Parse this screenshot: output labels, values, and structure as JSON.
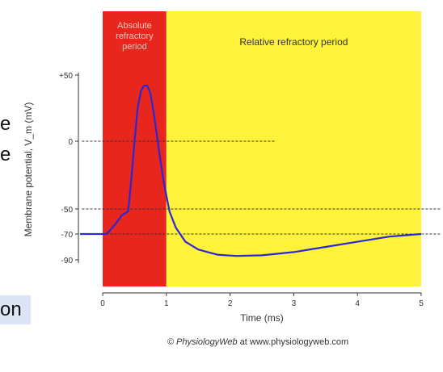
{
  "chart_data": {
    "type": "line",
    "xlabel": "Time (ms)",
    "ylabel": "Membrane potential, V_m (mV)",
    "xlim": [
      0,
      5
    ],
    "ylim": [
      -100,
      60
    ],
    "x_ticks": [
      "0",
      "1",
      "2",
      "3",
      "4",
      "5"
    ],
    "y_ticks": [
      {
        "value": 50,
        "label": "+50"
      },
      {
        "value": 0,
        "label": "0"
      },
      {
        "value": -50,
        "label": "-50"
      },
      {
        "value": -70,
        "label": "-70"
      },
      {
        "value": -90,
        "label": "-90"
      }
    ],
    "regions": [
      {
        "label": "Absolute refractory period",
        "x_start": 0,
        "x_end": 1,
        "color": "#e8261e"
      },
      {
        "label": "Relative refractory period",
        "x_start": 1,
        "x_end": 5,
        "color": "#fff23a"
      }
    ],
    "reference_lines": [
      {
        "y": 0,
        "x_start": -0.35,
        "x_end": 2.7
      },
      {
        "y": -50,
        "x_start": -0.35,
        "x_end": 5.35
      },
      {
        "y": -70,
        "x_start": -0.35,
        "x_end": 5.35
      }
    ],
    "series": [
      {
        "color": "#2a28d6",
        "points": [
          [
            0.0,
            -70
          ],
          [
            0.05,
            -70
          ],
          [
            0.1,
            -68
          ],
          [
            0.2,
            -62
          ],
          [
            0.3,
            -55
          ],
          [
            0.4,
            -52
          ],
          [
            0.45,
            -28
          ],
          [
            0.5,
            0
          ],
          [
            0.55,
            25
          ],
          [
            0.6,
            38
          ],
          [
            0.65,
            42
          ],
          [
            0.7,
            42
          ],
          [
            0.75,
            36
          ],
          [
            0.8,
            22
          ],
          [
            0.85,
            5
          ],
          [
            0.9,
            -12
          ],
          [
            0.95,
            -28
          ],
          [
            1.0,
            -40
          ],
          [
            1.05,
            -52
          ],
          [
            1.15,
            -65
          ],
          [
            1.3,
            -76
          ],
          [
            1.5,
            -82
          ],
          [
            1.8,
            -86
          ],
          [
            2.1,
            -87
          ],
          [
            2.5,
            -86.5
          ],
          [
            3.0,
            -84
          ],
          [
            3.5,
            -80
          ],
          [
            4.0,
            -76
          ],
          [
            4.5,
            -72
          ],
          [
            5.0,
            -70
          ]
        ]
      }
    ]
  },
  "crop_text": {
    "fragment_1": "e",
    "fragment_2": "e",
    "fragment_3": "on"
  },
  "credit": {
    "brand": "© PhysiologyWeb",
    "rest": " at www.physiologyweb.com"
  }
}
